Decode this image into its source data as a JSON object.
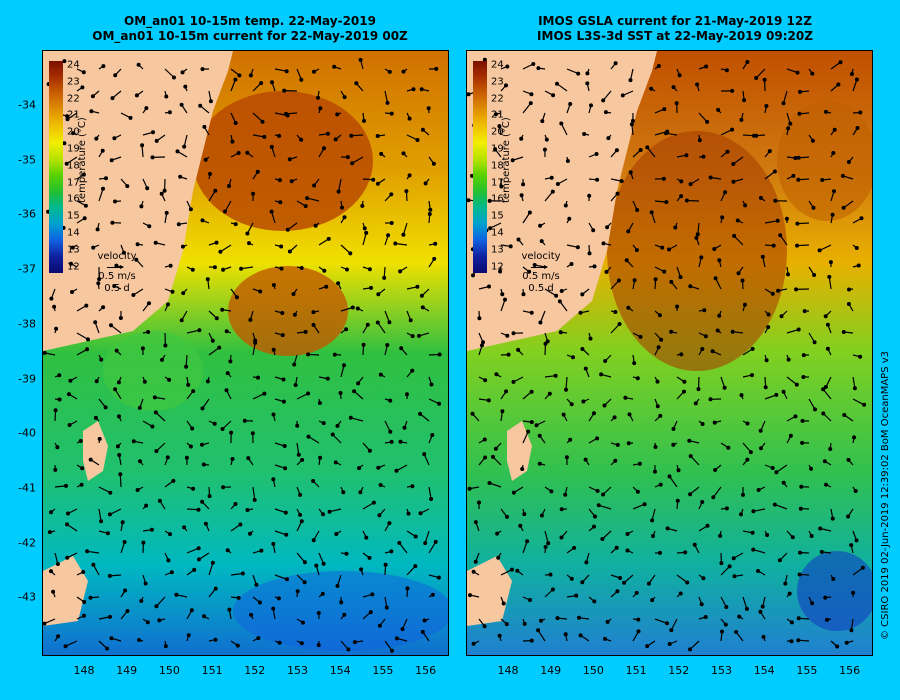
{
  "left_panel": {
    "title_line1": "OM_an01 10-15m temp. 22-May-2019",
    "title_line2": "OM_an01 10-15m current for 22-May-2019 00Z"
  },
  "right_panel": {
    "title_line1": "IMOS GSLA current for 21-May-2019 12Z",
    "title_line2": "IMOS L3S-3d SST at 22-May-2019 09:20Z"
  },
  "y_ticks": [
    "-34",
    "-35",
    "-36",
    "-37",
    "-38",
    "-39",
    "-40",
    "-41",
    "-42",
    "-43"
  ],
  "x_ticks": [
    "148",
    "149",
    "150",
    "151",
    "152",
    "153",
    "154",
    "155",
    "156"
  ],
  "colorbar": {
    "labels": [
      "24",
      "23",
      "22",
      "21",
      "20",
      "19",
      "18",
      "17",
      "16",
      "15",
      "14",
      "13",
      "12"
    ],
    "title": "temperature (°C)",
    "colors": [
      "#7a0e00",
      "#a83000",
      "#c96000",
      "#e09000",
      "#f0c000",
      "#f2ee00",
      "#b8e400",
      "#5ad000",
      "#22c030",
      "#00b890",
      "#00a0d0",
      "#1060e0",
      "#1020a0",
      "#0a0a70"
    ]
  },
  "velocity_key": {
    "label": "velocity",
    "speed": "0.5 m/s",
    "duration": "0.5 d"
  },
  "credit": "© CSIRO 2019   02-Jun-2019 12:39:02 BoM OceanMAPS v3"
}
